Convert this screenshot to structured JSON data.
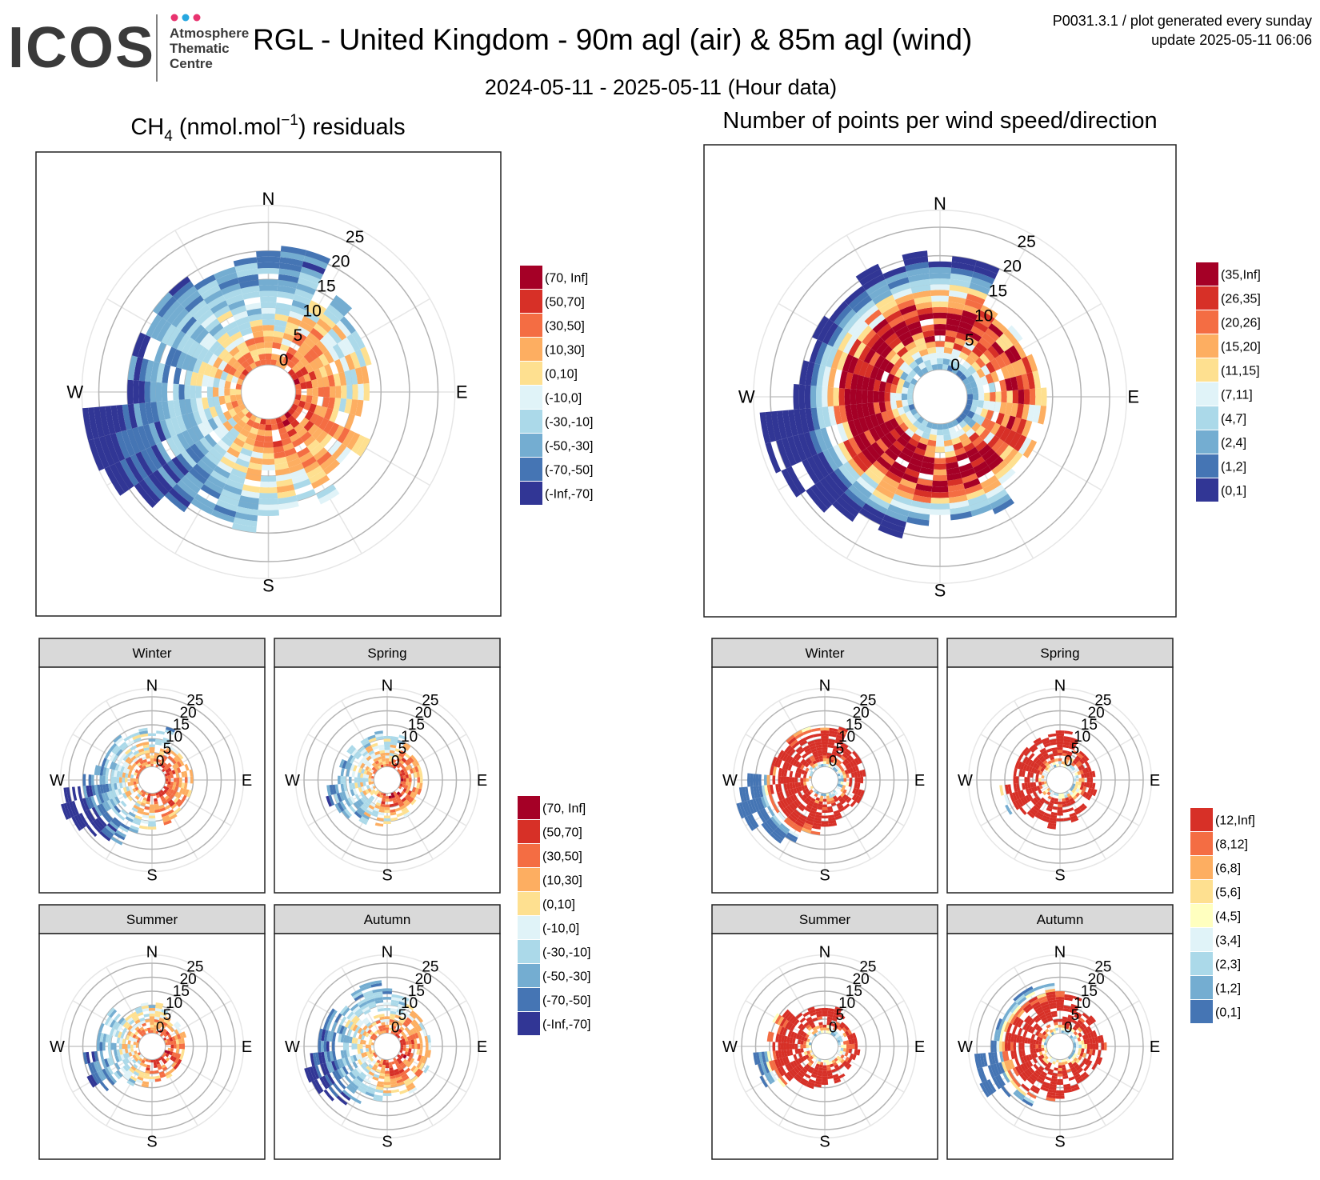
{
  "header": {
    "logo_text": "ICOS",
    "logo_sub": [
      "Atmosphere",
      "Thematic",
      "Centre"
    ],
    "logo_dots": [
      "#e8336f",
      "#26a7e0",
      "#e8336f"
    ],
    "title": "RGL - United Kingdom - 90m agl (air) & 85m agl (wind)",
    "subtitle": "2024-05-11 - 2025-05-11 (Hour data)",
    "meta_line1": "P0031.3.1 / plot generated every sunday",
    "meta_line2": "update  2025-05-11 06:06"
  },
  "panels": {
    "left_title_pre": "CH",
    "left_title_sub": "4",
    "left_title_mid": " (nmol.mol",
    "left_title_sup": "−1",
    "left_title_post": ") residuals",
    "right_title": "Number of points per wind speed/direction",
    "seasons": [
      "Winter",
      "Spring",
      "Summer",
      "Autumn"
    ]
  },
  "axes": {
    "compass": [
      "N",
      "E",
      "S",
      "W"
    ],
    "ring_labels": [
      "0",
      "5",
      "10",
      "15",
      "20",
      "25"
    ]
  },
  "legends": {
    "ch4_residuals": {
      "labels": [
        "(70, Inf]",
        "(50,70]",
        "(30,50]",
        "(10,30]",
        "(0,10]",
        "(-10,0]",
        "(-30,-10]",
        "(-50,-30]",
        "(-70,-50]",
        "(-Inf,-70]"
      ],
      "colors": [
        "#a50026",
        "#d73027",
        "#f46d43",
        "#fdae61",
        "#fee090",
        "#e0f3f8",
        "#abd9e9",
        "#74add1",
        "#4575b4",
        "#313695"
      ]
    },
    "count_main": {
      "labels": [
        "(35,Inf]",
        "(26,35]",
        "(20,26]",
        "(15,20]",
        "(11,15]",
        "(7,11]",
        "(4,7]",
        "(2,4]",
        "(1,2]",
        "(0,1]"
      ],
      "colors": [
        "#a50026",
        "#d73027",
        "#f46d43",
        "#fdae61",
        "#fee090",
        "#e0f3f8",
        "#abd9e9",
        "#74add1",
        "#4575b4",
        "#313695"
      ]
    },
    "ch4_seasonal": {
      "labels": [
        "(70, Inf]",
        "(50,70]",
        "(30,50]",
        "(10,30]",
        "(0,10]",
        "(-10,0]",
        "(-30,-10]",
        "(-50,-30]",
        "(-70,-50]",
        "(-Inf,-70]"
      ],
      "colors": [
        "#a50026",
        "#d73027",
        "#f46d43",
        "#fdae61",
        "#fee090",
        "#e0f3f8",
        "#abd9e9",
        "#74add1",
        "#4575b4",
        "#313695"
      ]
    },
    "count_seasonal": {
      "labels": [
        "(12,Inf]",
        "(8,12]",
        "(6,8]",
        "(5,6]",
        "(4,5]",
        "(3,4]",
        "(2,3]",
        "(1,2]",
        "(0,1]"
      ],
      "colors": [
        "#d73027",
        "#f46d43",
        "#fdae61",
        "#fee090",
        "#ffffbf",
        "#e0f3f8",
        "#abd9e9",
        "#74add1",
        "#4575b4"
      ]
    }
  },
  "chart_data": [
    {
      "type": "polar-heatmap",
      "title": "CH4 (nmol.mol-1) residuals",
      "r_range": [
        0,
        25
      ],
      "r_ticks": [
        0,
        5,
        10,
        15,
        20,
        25
      ],
      "direction_bin_deg": 10,
      "speed_bin": 1,
      "color_scale": "ch4_residuals",
      "pattern": "positive residuals near centre (low wind) and towards E/S; negative residuals at high wind speeds from W and SW"
    },
    {
      "type": "polar-heatmap",
      "title": "Number of points per wind speed/direction",
      "r_range": [
        0,
        25
      ],
      "r_ticks": [
        0,
        5,
        10,
        15,
        20,
        25
      ],
      "direction_bin_deg": 10,
      "speed_bin": 1,
      "color_scale": "count_main",
      "pattern": "highest counts at moderate speeds (5-12) from W and SW; sparse counts at high speeds"
    },
    {
      "type": "polar-heatmap",
      "facet": "Winter",
      "group": "ch4",
      "r_range": [
        0,
        25
      ],
      "color_scale": "ch4_seasonal"
    },
    {
      "type": "polar-heatmap",
      "facet": "Spring",
      "group": "ch4",
      "r_range": [
        0,
        25
      ],
      "color_scale": "ch4_seasonal"
    },
    {
      "type": "polar-heatmap",
      "facet": "Summer",
      "group": "ch4",
      "r_range": [
        0,
        25
      ],
      "color_scale": "ch4_seasonal"
    },
    {
      "type": "polar-heatmap",
      "facet": "Autumn",
      "group": "ch4",
      "r_range": [
        0,
        25
      ],
      "color_scale": "ch4_seasonal"
    },
    {
      "type": "polar-heatmap",
      "facet": "Winter",
      "group": "count",
      "r_range": [
        0,
        25
      ],
      "color_scale": "count_seasonal"
    },
    {
      "type": "polar-heatmap",
      "facet": "Spring",
      "group": "count",
      "r_range": [
        0,
        25
      ],
      "color_scale": "count_seasonal"
    },
    {
      "type": "polar-heatmap",
      "facet": "Summer",
      "group": "count",
      "r_range": [
        0,
        25
      ],
      "color_scale": "count_seasonal"
    },
    {
      "type": "polar-heatmap",
      "facet": "Autumn",
      "group": "count",
      "r_range": [
        0,
        25
      ],
      "color_scale": "count_seasonal"
    }
  ]
}
